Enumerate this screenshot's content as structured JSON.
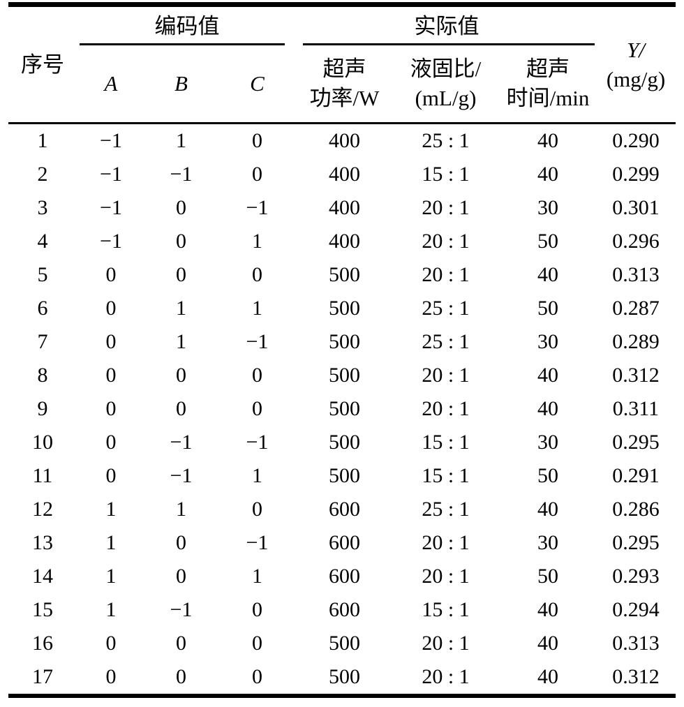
{
  "page": {
    "background_color": "#ffffff",
    "text_color": "#000000",
    "rule_color": "#000000"
  },
  "table": {
    "header": {
      "serial": "序号",
      "group_coded": "编码值",
      "group_actual": "实际值",
      "a": "A",
      "b": "B",
      "c": "C",
      "power_line1": "超声",
      "power_line2": "功率/W",
      "ratio_line1": "液固比/",
      "ratio_line2": "(mL/g)",
      "time_line1": "超声",
      "time_line2": "时间/min",
      "y_line1": "Y/",
      "y_line2": "(mg/g)"
    },
    "columns": [
      "序号",
      "A",
      "B",
      "C",
      "超声功率/W",
      "液固比/(mL/g)",
      "超声时间/min",
      "Y/(mg/g)"
    ],
    "rows": [
      [
        "1",
        "−1",
        "1",
        "0",
        "400",
        "25 : 1",
        "40",
        "0.290"
      ],
      [
        "2",
        "−1",
        "−1",
        "0",
        "400",
        "15 : 1",
        "40",
        "0.299"
      ],
      [
        "3",
        "−1",
        "0",
        "−1",
        "400",
        "20 : 1",
        "30",
        "0.301"
      ],
      [
        "4",
        "−1",
        "0",
        "1",
        "400",
        "20 : 1",
        "50",
        "0.296"
      ],
      [
        "5",
        "0",
        "0",
        "0",
        "500",
        "20 : 1",
        "40",
        "0.313"
      ],
      [
        "6",
        "0",
        "1",
        "1",
        "500",
        "25 : 1",
        "50",
        "0.287"
      ],
      [
        "7",
        "0",
        "1",
        "−1",
        "500",
        "25 : 1",
        "30",
        "0.289"
      ],
      [
        "8",
        "0",
        "0",
        "0",
        "500",
        "20 : 1",
        "40",
        "0.312"
      ],
      [
        "9",
        "0",
        "0",
        "0",
        "500",
        "20 : 1",
        "40",
        "0.311"
      ],
      [
        "10",
        "0",
        "−1",
        "−1",
        "500",
        "15 : 1",
        "30",
        "0.295"
      ],
      [
        "11",
        "0",
        "−1",
        "1",
        "500",
        "15 : 1",
        "50",
        "0.291"
      ],
      [
        "12",
        "1",
        "1",
        "0",
        "600",
        "25 : 1",
        "40",
        "0.286"
      ],
      [
        "13",
        "1",
        "0",
        "−1",
        "600",
        "20 : 1",
        "30",
        "0.295"
      ],
      [
        "14",
        "1",
        "0",
        "1",
        "600",
        "20 : 1",
        "50",
        "0.293"
      ],
      [
        "15",
        "1",
        "−1",
        "0",
        "600",
        "15 : 1",
        "40",
        "0.294"
      ],
      [
        "16",
        "0",
        "0",
        "0",
        "500",
        "20 : 1",
        "40",
        "0.313"
      ],
      [
        "17",
        "0",
        "0",
        "0",
        "500",
        "20 : 1",
        "40",
        "0.312"
      ]
    ]
  }
}
